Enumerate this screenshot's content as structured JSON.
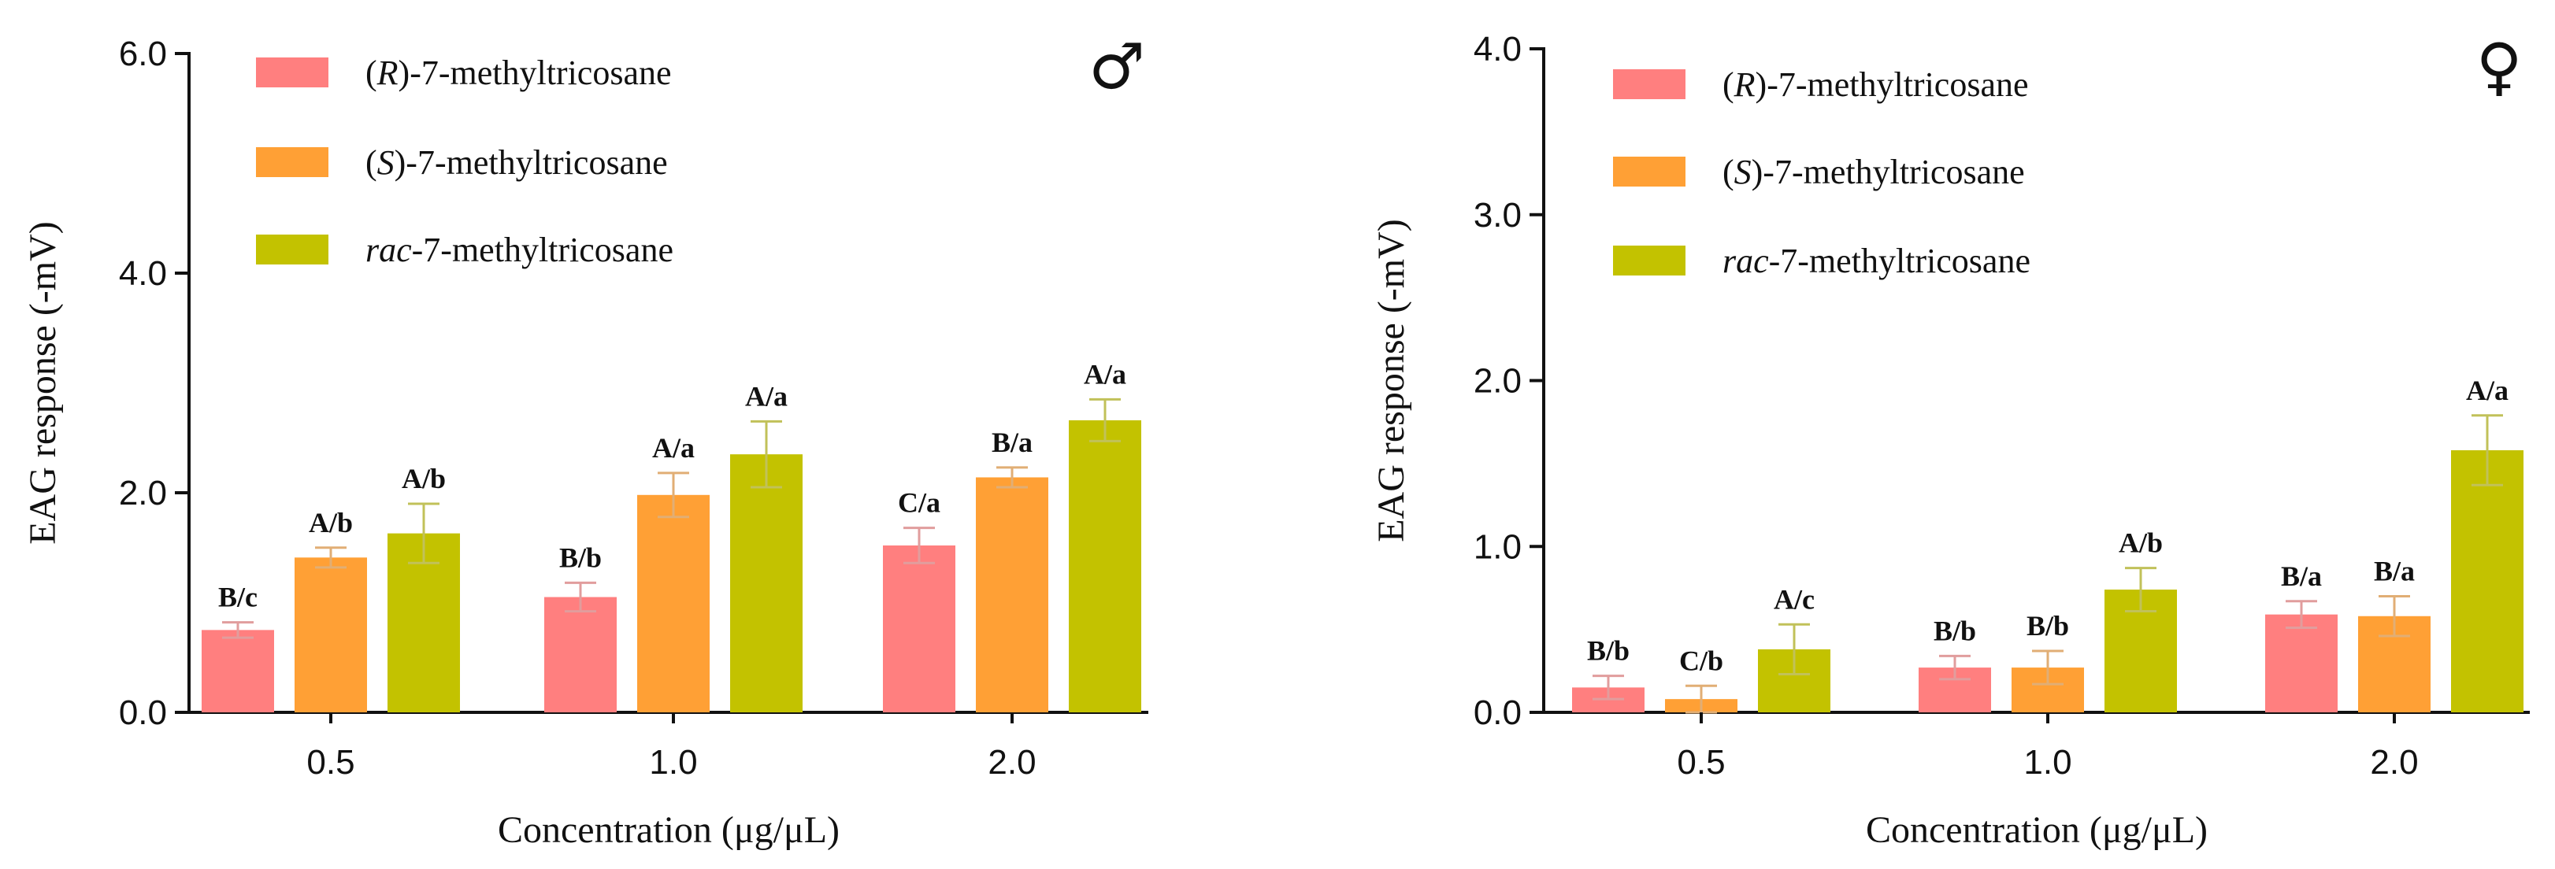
{
  "chart_data": [
    {
      "type": "bar",
      "panel": "male",
      "sex_symbol": "♂",
      "categories": [
        "0.5",
        "1.0",
        "2.0"
      ],
      "xlabel": "Concentration (μg/μL)",
      "ylabel": "EAG response (-mV)",
      "ylim": [
        0,
        6.0
      ],
      "yticks": [
        "0.0",
        "2.0",
        "4.0",
        "6.0"
      ],
      "legend_position": "top-left",
      "series": [
        {
          "name_prefix": "(",
          "name_italic": "R",
          "name_suffix": ")-7-methyltricosane",
          "color": "#FF7F7F",
          "values": [
            0.75,
            1.05,
            1.52
          ],
          "errors": [
            0.07,
            0.13,
            0.16
          ],
          "labels": [
            "B/c",
            "B/b",
            "C/a"
          ]
        },
        {
          "name_prefix": "(",
          "name_italic": "S",
          "name_suffix": ")-7-methyltricosane",
          "color": "#FFA035",
          "values": [
            1.41,
            1.98,
            2.14
          ],
          "errors": [
            0.09,
            0.2,
            0.09
          ],
          "labels": [
            "A/b",
            "A/a",
            "B/a"
          ]
        },
        {
          "name_prefix": "",
          "name_italic": "rac",
          "name_suffix": "-7-methyltricosane",
          "color": "#C3C200",
          "values": [
            1.63,
            2.35,
            2.66
          ],
          "errors": [
            0.27,
            0.3,
            0.19
          ],
          "labels": [
            "A/b",
            "A/a",
            "A/a"
          ]
        }
      ]
    },
    {
      "type": "bar",
      "panel": "female",
      "sex_symbol": "♀",
      "categories": [
        "0.5",
        "1.0",
        "2.0"
      ],
      "xlabel": "Concentration (μg/μL)",
      "ylabel": "EAG response (-mV)",
      "ylim": [
        0,
        4.0
      ],
      "yticks": [
        "0.0",
        "1.0",
        "2.0",
        "3.0",
        "4.0"
      ],
      "legend_position": "top-left",
      "series": [
        {
          "name_prefix": "(",
          "name_italic": "R",
          "name_suffix": ")-7-methyltricosane",
          "color": "#FF7F7F",
          "values": [
            0.15,
            0.27,
            0.59
          ],
          "errors": [
            0.07,
            0.07,
            0.08
          ],
          "labels": [
            "B/b",
            "B/b",
            "B/a"
          ]
        },
        {
          "name_prefix": "(",
          "name_italic": "S",
          "name_suffix": ")-7-methyltricosane",
          "color": "#FFA035",
          "values": [
            0.08,
            0.27,
            0.58
          ],
          "errors": [
            0.08,
            0.1,
            0.12
          ],
          "labels": [
            "C/b",
            "B/b",
            "B/a"
          ]
        },
        {
          "name_prefix": "",
          "name_italic": "rac",
          "name_suffix": "-7-methyltricosane",
          "color": "#C3C200",
          "values": [
            0.38,
            0.74,
            1.58
          ],
          "errors": [
            0.15,
            0.13,
            0.21
          ],
          "labels": [
            "A/c",
            "A/b",
            "A/a"
          ]
        }
      ]
    }
  ]
}
